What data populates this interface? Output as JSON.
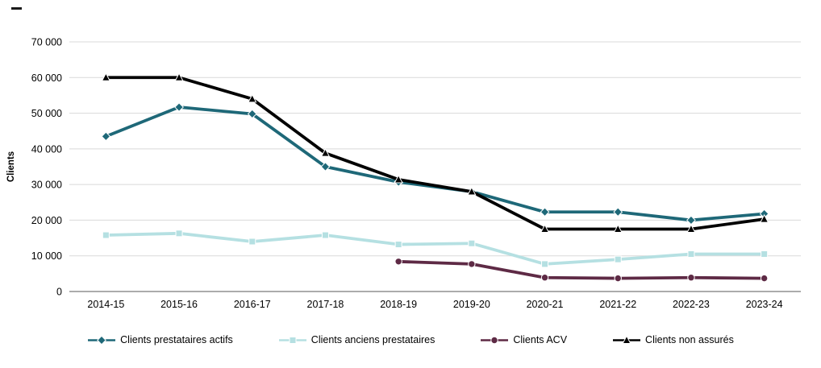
{
  "chart_data": {
    "type": "line",
    "title": "",
    "xlabel": "",
    "ylabel": "Clients",
    "ylim": [
      0,
      70000
    ],
    "grid": true,
    "grid_color": "#d9d9d9",
    "axis_color": "#595959",
    "legend_position": "bottom",
    "categories": [
      "2014-15",
      "2015-16",
      "2016-17",
      "2017-18",
      "2018-19",
      "2019-20",
      "2020-21",
      "2021-22",
      "2022-23",
      "2023-24"
    ],
    "yticks": {
      "values": [
        0,
        10000,
        20000,
        30000,
        40000,
        50000,
        60000,
        70000
      ],
      "labels": [
        "0",
        "10 000",
        "20 000",
        "30 000",
        "40 000",
        "50 000",
        "60 000",
        "70 000"
      ]
    },
    "series": [
      {
        "name": "Clients prestataires actifs",
        "color": "#1e6878",
        "marker": "diamond",
        "values": [
          43500,
          51700,
          49800,
          35000,
          30700,
          28000,
          22300,
          22300,
          20000,
          21800
        ]
      },
      {
        "name": "Clients anciens prestataires",
        "color": "#b5e0e2",
        "marker": "square",
        "values": [
          15800,
          16300,
          14000,
          15800,
          13200,
          13500,
          7700,
          9000,
          10500,
          10500
        ]
      },
      {
        "name": "Clients ACV",
        "color": "#5e2a45",
        "marker": "circle",
        "values": [
          null,
          null,
          null,
          null,
          8400,
          7700,
          3900,
          3700,
          3900,
          3700
        ]
      },
      {
        "name": "Clients non assurés",
        "color": "#000000",
        "marker": "triangle",
        "values": [
          60000,
          60000,
          54000,
          38800,
          31400,
          28000,
          17500,
          17500,
          17500,
          20300
        ]
      }
    ]
  }
}
